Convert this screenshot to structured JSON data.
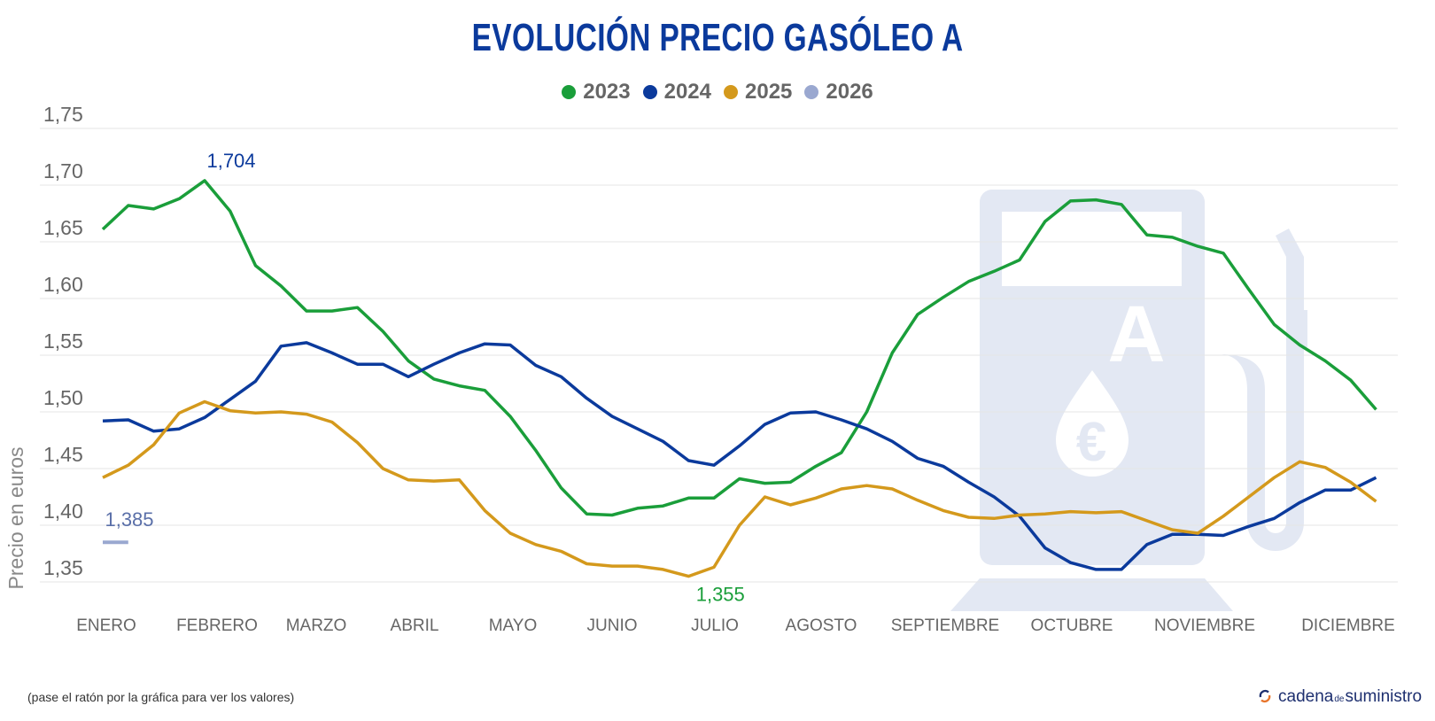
{
  "chart_data": {
    "type": "line",
    "title": "EVOLUCIÓN PRECIO GASÓLEO A",
    "ylabel": "Precio en euros",
    "xlabel": "",
    "ylim": [
      1.33,
      1.75
    ],
    "yticks": [
      "1,75",
      "1,70",
      "1,65",
      "1,60",
      "1,55",
      "1,50",
      "1,45",
      "1,40",
      "1,35"
    ],
    "ytick_values": [
      1.75,
      1.7,
      1.65,
      1.6,
      1.55,
      1.5,
      1.45,
      1.4,
      1.35
    ],
    "xtick_labels": [
      "ENERO",
      "FEBRERO",
      "MARZO",
      "ABRIL",
      "MAYO",
      "JUNIO",
      "JULIO",
      "AGOSTO",
      "SEPTIEMBRE",
      "OCTUBRE",
      "NOVIEMBRE",
      "DICIEMBRE"
    ],
    "grid": true,
    "legend_position": "top-center",
    "series": [
      {
        "name": "2023",
        "color": "#1a9e3a",
        "values": [
          1.661,
          1.682,
          1.679,
          1.688,
          1.704,
          1.677,
          1.629,
          1.611,
          1.589,
          1.589,
          1.592,
          1.571,
          1.545,
          1.529,
          1.523,
          1.519,
          1.496,
          1.466,
          1.433,
          1.41,
          1.409,
          1.415,
          1.417,
          1.424,
          1.424,
          1.441,
          1.437,
          1.438,
          1.452,
          1.464,
          1.5,
          1.552,
          1.586,
          1.601,
          1.615,
          1.624,
          1.634,
          1.668,
          1.686,
          1.687,
          1.683,
          1.656,
          1.654,
          1.646,
          1.64,
          1.608,
          1.577,
          1.559,
          1.545,
          1.528,
          1.502
        ]
      },
      {
        "name": "2024",
        "color": "#0b3a9c",
        "values": [
          1.492,
          1.493,
          1.483,
          1.485,
          1.495,
          1.511,
          1.527,
          1.558,
          1.561,
          1.552,
          1.542,
          1.542,
          1.531,
          1.542,
          1.552,
          1.56,
          1.559,
          1.541,
          1.531,
          1.512,
          1.496,
          1.485,
          1.474,
          1.457,
          1.453,
          1.47,
          1.489,
          1.499,
          1.5,
          1.493,
          1.485,
          1.474,
          1.459,
          1.452,
          1.438,
          1.425,
          1.408,
          1.38,
          1.367,
          1.361,
          1.361,
          1.383,
          1.392,
          1.392,
          1.391,
          1.399,
          1.406,
          1.42,
          1.431,
          1.431,
          1.442
        ]
      },
      {
        "name": "2025",
        "color": "#d4991c",
        "values": [
          1.442,
          1.453,
          1.471,
          1.499,
          1.509,
          1.501,
          1.499,
          1.5,
          1.498,
          1.491,
          1.473,
          1.45,
          1.44,
          1.439,
          1.44,
          1.413,
          1.393,
          1.383,
          1.377,
          1.366,
          1.364,
          1.364,
          1.361,
          1.355,
          1.363,
          1.4,
          1.425,
          1.418,
          1.424,
          1.432,
          1.435,
          1.432,
          1.422,
          1.413,
          1.407,
          1.406,
          1.409,
          1.41,
          1.412,
          1.411,
          1.412,
          1.404,
          1.396,
          1.393,
          1.408,
          1.425,
          1.442,
          1.456,
          1.451,
          1.438,
          1.421
        ]
      },
      {
        "name": "2026",
        "color": "#9aa8d0",
        "values": [
          1.385,
          1.385
        ]
      }
    ],
    "annotations": [
      {
        "text": "1,704",
        "series": "2023",
        "index": 4,
        "color": "#0b3a9c"
      },
      {
        "text": "1,385",
        "series": "2026",
        "index": 0,
        "color": "#5a6fa8"
      },
      {
        "text": "1,355",
        "series": "2025",
        "index": 23,
        "color": "#1a9e3a"
      }
    ]
  },
  "legend": [
    {
      "label": "2023",
      "color": "#1a9e3a"
    },
    {
      "label": "2024",
      "color": "#0b3a9c"
    },
    {
      "label": "2025",
      "color": "#d4991c"
    },
    {
      "label": "2026",
      "color": "#9aa8d0"
    }
  ],
  "footer": {
    "note": "(pase el ratón por la gráfica para ver los valores)",
    "logo_main": "cadena",
    "logo_small": "de",
    "logo_end": "suministro"
  }
}
